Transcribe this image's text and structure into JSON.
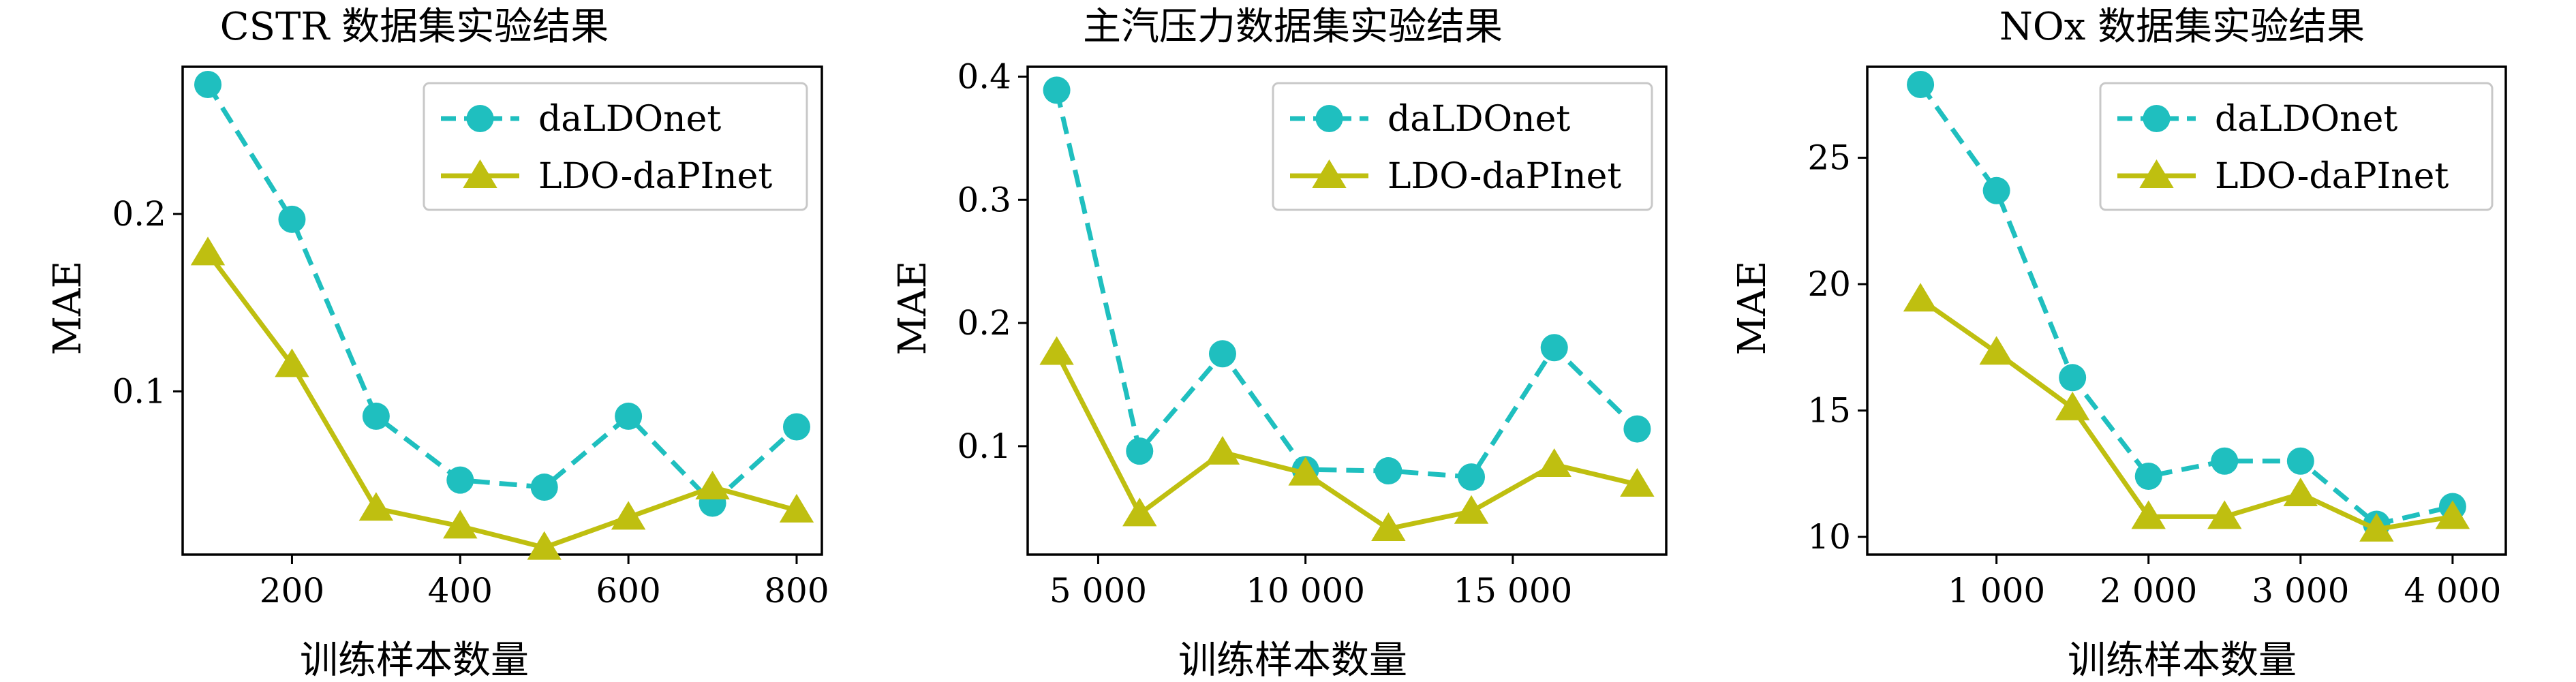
{
  "colors": {
    "daLDOnet": "#1fbfbf",
    "LDO-daPInet": "#bfbf10"
  },
  "chart_data": [
    {
      "type": "line",
      "title": "CSTR 数据集实验结果",
      "xlabel": "训练样本数量",
      "ylabel": "MAE",
      "xlim": [
        70,
        830
      ],
      "ylim": [
        0.008,
        0.283
      ],
      "xticks": [
        200,
        400,
        600,
        800
      ],
      "xtick_labels": [
        "200",
        "400",
        "600",
        "800"
      ],
      "yticks": [
        0.1,
        0.2
      ],
      "ytick_labels": [
        "0.1",
        "0.2"
      ],
      "legend": "top-right",
      "series": [
        {
          "name": "daLDOnet",
          "style": "dashed",
          "marker": "circle",
          "x": [
            100,
            200,
            300,
            400,
            500,
            600,
            700,
            800
          ],
          "y": [
            0.273,
            0.197,
            0.086,
            0.05,
            0.046,
            0.086,
            0.037,
            0.08
          ]
        },
        {
          "name": "LDO-daPInet",
          "style": "solid",
          "marker": "triangle",
          "x": [
            100,
            200,
            300,
            400,
            500,
            600,
            700,
            800
          ],
          "y": [
            0.178,
            0.115,
            0.034,
            0.024,
            0.012,
            0.029,
            0.046,
            0.033
          ]
        }
      ]
    },
    {
      "type": "line",
      "title": "主汽压力数据集实验结果",
      "xlabel": "训练样本数量",
      "ylabel": "MAE",
      "xlim": [
        3300,
        18700
      ],
      "ylim": [
        0.012,
        0.408
      ],
      "xticks": [
        5000,
        10000,
        15000
      ],
      "xtick_labels": [
        "5 000",
        "10 000",
        "15 000"
      ],
      "yticks": [
        0.1,
        0.2,
        0.3,
        0.4
      ],
      "ytick_labels": [
        "0.1",
        "0.2",
        "0.3",
        "0.4"
      ],
      "legend": "top-right",
      "series": [
        {
          "name": "daLDOnet",
          "style": "dashed",
          "marker": "circle",
          "x": [
            4000,
            6000,
            8000,
            10000,
            12000,
            14000,
            16000,
            18000
          ],
          "y": [
            0.389,
            0.096,
            0.175,
            0.081,
            0.08,
            0.075,
            0.18,
            0.114
          ]
        },
        {
          "name": "LDO-daPInet",
          "style": "solid",
          "marker": "triangle",
          "x": [
            4000,
            6000,
            8000,
            10000,
            12000,
            14000,
            16000,
            18000
          ],
          "y": [
            0.176,
            0.045,
            0.095,
            0.078,
            0.033,
            0.047,
            0.085,
            0.069
          ]
        }
      ]
    },
    {
      "type": "line",
      "title": "NOx 数据集实验结果",
      "xlabel": "训练样本数量",
      "ylabel": "MAE",
      "xlim": [
        150,
        4350
      ],
      "ylim": [
        9.3,
        28.6
      ],
      "xticks": [
        1000,
        2000,
        3000,
        4000
      ],
      "xtick_labels": [
        "1 000",
        "2 000",
        "3 000",
        "4 000"
      ],
      "yticks": [
        10,
        15,
        20,
        25
      ],
      "ytick_labels": [
        "10",
        "15",
        "20",
        "25"
      ],
      "legend": "top-right",
      "series": [
        {
          "name": "daLDOnet",
          "style": "dashed",
          "marker": "circle",
          "x": [
            500,
            1000,
            1500,
            2000,
            2500,
            3000,
            3500,
            4000
          ],
          "y": [
            27.9,
            23.7,
            16.3,
            12.4,
            13.0,
            13.0,
            10.5,
            11.2
          ]
        },
        {
          "name": "LDO-daPInet",
          "style": "solid",
          "marker": "triangle",
          "x": [
            500,
            1000,
            1500,
            2000,
            2500,
            3000,
            3500,
            4000
          ],
          "y": [
            19.4,
            17.3,
            15.1,
            10.8,
            10.8,
            11.7,
            10.3,
            10.8
          ]
        }
      ]
    }
  ]
}
